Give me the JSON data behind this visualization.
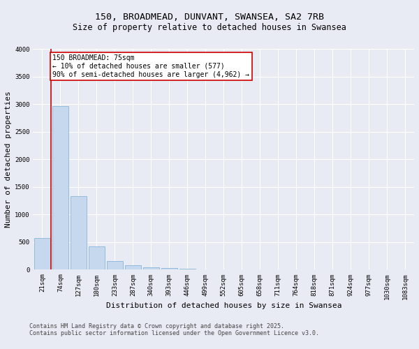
{
  "title_line1": "150, BROADMEAD, DUNVANT, SWANSEA, SA2 7RB",
  "title_line2": "Size of property relative to detached houses in Swansea",
  "xlabel": "Distribution of detached houses by size in Swansea",
  "ylabel": "Number of detached properties",
  "background_color": "#e8eaf4",
  "bar_color": "#c5d8ee",
  "bar_edge_color": "#7aadd4",
  "categories": [
    "21sqm",
    "74sqm",
    "127sqm",
    "180sqm",
    "233sqm",
    "287sqm",
    "340sqm",
    "393sqm",
    "446sqm",
    "499sqm",
    "552sqm",
    "605sqm",
    "658sqm",
    "711sqm",
    "764sqm",
    "818sqm",
    "871sqm",
    "924sqm",
    "977sqm",
    "1030sqm",
    "1083sqm"
  ],
  "values": [
    580,
    2970,
    1330,
    420,
    155,
    75,
    45,
    30,
    20,
    0,
    0,
    0,
    0,
    0,
    0,
    0,
    0,
    0,
    0,
    0,
    0
  ],
  "ylim": [
    0,
    4000
  ],
  "yticks": [
    0,
    500,
    1000,
    1500,
    2000,
    2500,
    3000,
    3500,
    4000
  ],
  "property_line_label": "150 BROADMEAD: 75sqm",
  "annotation_line1": "← 10% of detached houses are smaller (577)",
  "annotation_line2": "90% of semi-detached houses are larger (4,962) →",
  "red_line_color": "#cc0000",
  "annotation_box_color": "#ffffff",
  "annotation_box_edge": "#cc0000",
  "footnote_line1": "Contains HM Land Registry data © Crown copyright and database right 2025.",
  "footnote_line2": "Contains public sector information licensed under the Open Government Licence v3.0.",
  "grid_color": "#ffffff",
  "title_fontsize": 9.5,
  "subtitle_fontsize": 8.5,
  "axis_label_fontsize": 8,
  "tick_fontsize": 6.5,
  "annotation_fontsize": 7,
  "footnote_fontsize": 6
}
